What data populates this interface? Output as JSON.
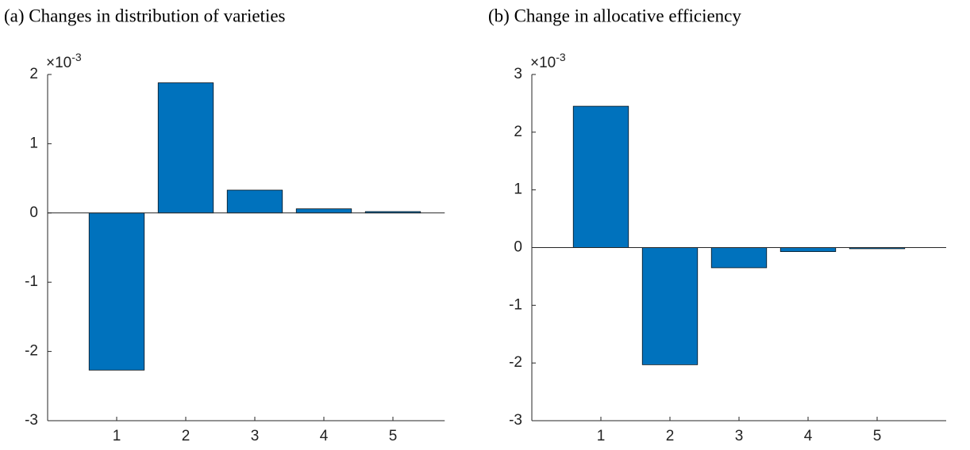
{
  "chart_data": [
    {
      "type": "bar",
      "title": "(a) Changes in distribution of varieties",
      "y_exponent_base": "×10",
      "y_exponent": "-3",
      "x": [
        1,
        2,
        3,
        4,
        5
      ],
      "values": [
        -2.27,
        1.88,
        0.33,
        0.06,
        0.02
      ],
      "color": "#0072bd",
      "xlim": [
        0,
        5.75
      ],
      "xticks": [
        1,
        2,
        3,
        4,
        5
      ],
      "ylim": [
        -3,
        2
      ],
      "yticks": [
        -3,
        -2,
        -1,
        0,
        1,
        2
      ]
    },
    {
      "type": "bar",
      "title": "(b) Change in allocative efficiency",
      "y_exponent_base": "×10",
      "y_exponent": "-3",
      "x": [
        1,
        2,
        3,
        4,
        5
      ],
      "values": [
        2.45,
        -2.03,
        -0.35,
        -0.07,
        -0.02
      ],
      "color": "#0072bd",
      "xlim": [
        0,
        6
      ],
      "xticks": [
        1,
        2,
        3,
        4,
        5
      ],
      "ylim": [
        -3,
        3
      ],
      "yticks": [
        -3,
        -2,
        -1,
        0,
        1,
        2,
        3
      ]
    }
  ]
}
